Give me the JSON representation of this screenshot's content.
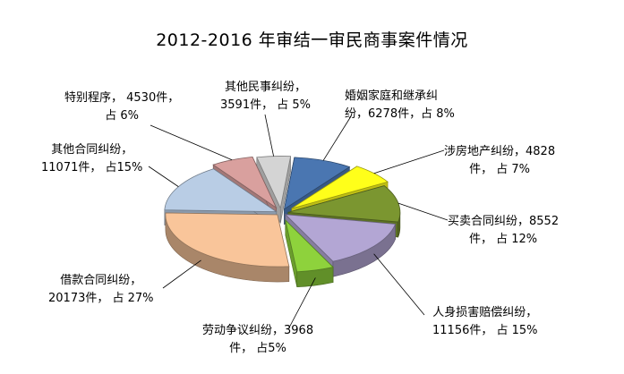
{
  "chart_data": {
    "type": "pie",
    "title": "2012-2016 年审结一审民商事案件情况",
    "slices": [
      {
        "name": "婚姻家庭和继承纠纷",
        "value": 6278,
        "percent": "8%",
        "color": "#4a76b1",
        "line1": "婚姻家庭和继承纠",
        "line2": "纷，6278件，占 8%"
      },
      {
        "name": "涉房地产纠纷",
        "value": 4828,
        "percent": "7%",
        "color": "#ffff1a",
        "line1": "涉房地产纠纷，4828",
        "line2": "件， 占 7%"
      },
      {
        "name": "买卖合同纠纷",
        "value": 8552,
        "percent": "12%",
        "color": "#7b9630",
        "line1": "买卖合同纠纷，8552",
        "line2": "件， 占 12%"
      },
      {
        "name": "人身损害赔偿纠纷",
        "value": 11156,
        "percent": "15%",
        "color": "#b3a6d4",
        "line1": "人身损害赔偿纠纷，",
        "line2": "11156件， 占 15%"
      },
      {
        "name": "劳动争议纠纷",
        "value": 3968,
        "percent": "5%",
        "color": "#8ed23c",
        "line1": "劳动争议纠纷，3968",
        "line2": "件，  占5%"
      },
      {
        "name": "借款合同纠纷",
        "value": 20173,
        "percent": "27%",
        "color": "#f9c59a",
        "line1": "借款合同纠纷，",
        "line2": "20173件， 占 27%"
      },
      {
        "name": "其他合同纠纷",
        "value": 11071,
        "percent": "15%",
        "color": "#b9cde5",
        "line1": "其他合同纠纷，",
        "line2": "11071件， 占15%"
      },
      {
        "name": "特别程序",
        "value": 4530,
        "percent": "6%",
        "color": "#d9a09e",
        "line1": "特别程序， 4530件，",
        "line2": "占 6%"
      },
      {
        "name": "其他民事纠纷",
        "value": 3591,
        "percent": "5%",
        "color": "#d4d4d4",
        "line1": "其他民事纠纷，",
        "line2": "3591件， 占 5%"
      }
    ]
  }
}
